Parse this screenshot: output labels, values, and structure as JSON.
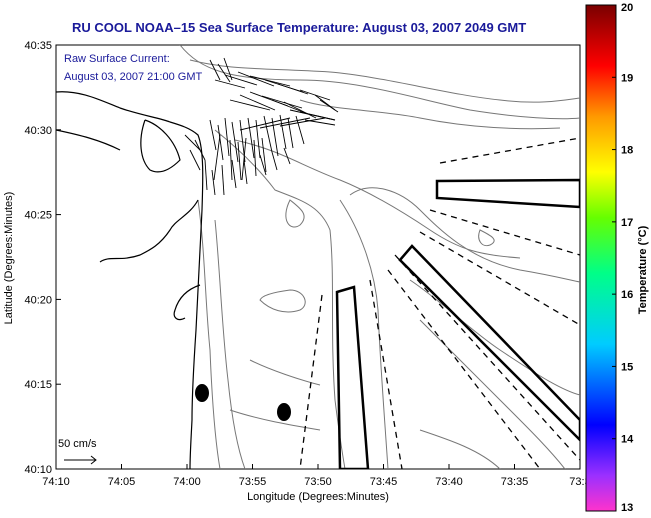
{
  "title": "RU COOL  NOAA–15  Sea Surface Temperature:  August 03, 2007 2049 GMT",
  "annotation": {
    "line1": "Raw Surface Current:",
    "line2": "August 03, 2007 21:00 GMT"
  },
  "scale_label": "50 cm/s",
  "axes": {
    "xlabel": "Longitude (Degrees:Minutes)",
    "ylabel": "Latitude (Degrees:Minutes)",
    "x_ticks": [
      "74:10",
      "74:05",
      "74:00",
      "73:55",
      "73:50",
      "73:45",
      "73:40",
      "73:35",
      "73:3"
    ],
    "y_ticks": [
      "40:35",
      "40:30",
      "40:25",
      "40:20",
      "40:15",
      "40:10"
    ]
  },
  "colorbar": {
    "label": "Temperature (°C)",
    "ticks": [
      "20",
      "19",
      "18",
      "17",
      "16",
      "15",
      "14",
      "13"
    ],
    "min": 13,
    "max": 20,
    "colors": [
      "#ff33cc",
      "#8a2be2",
      "#0000ff",
      "#00bfff",
      "#00ffaa",
      "#7cfc00",
      "#ffff00",
      "#ff9900",
      "#ff0000",
      "#8b0000"
    ]
  },
  "markers": [
    {
      "name": "station-marker-1",
      "lon": "73:58.8",
      "lat": "40:14.8"
    },
    {
      "name": "station-marker-2",
      "lon": "73:52.2",
      "lat": "40:13.6"
    }
  ]
}
